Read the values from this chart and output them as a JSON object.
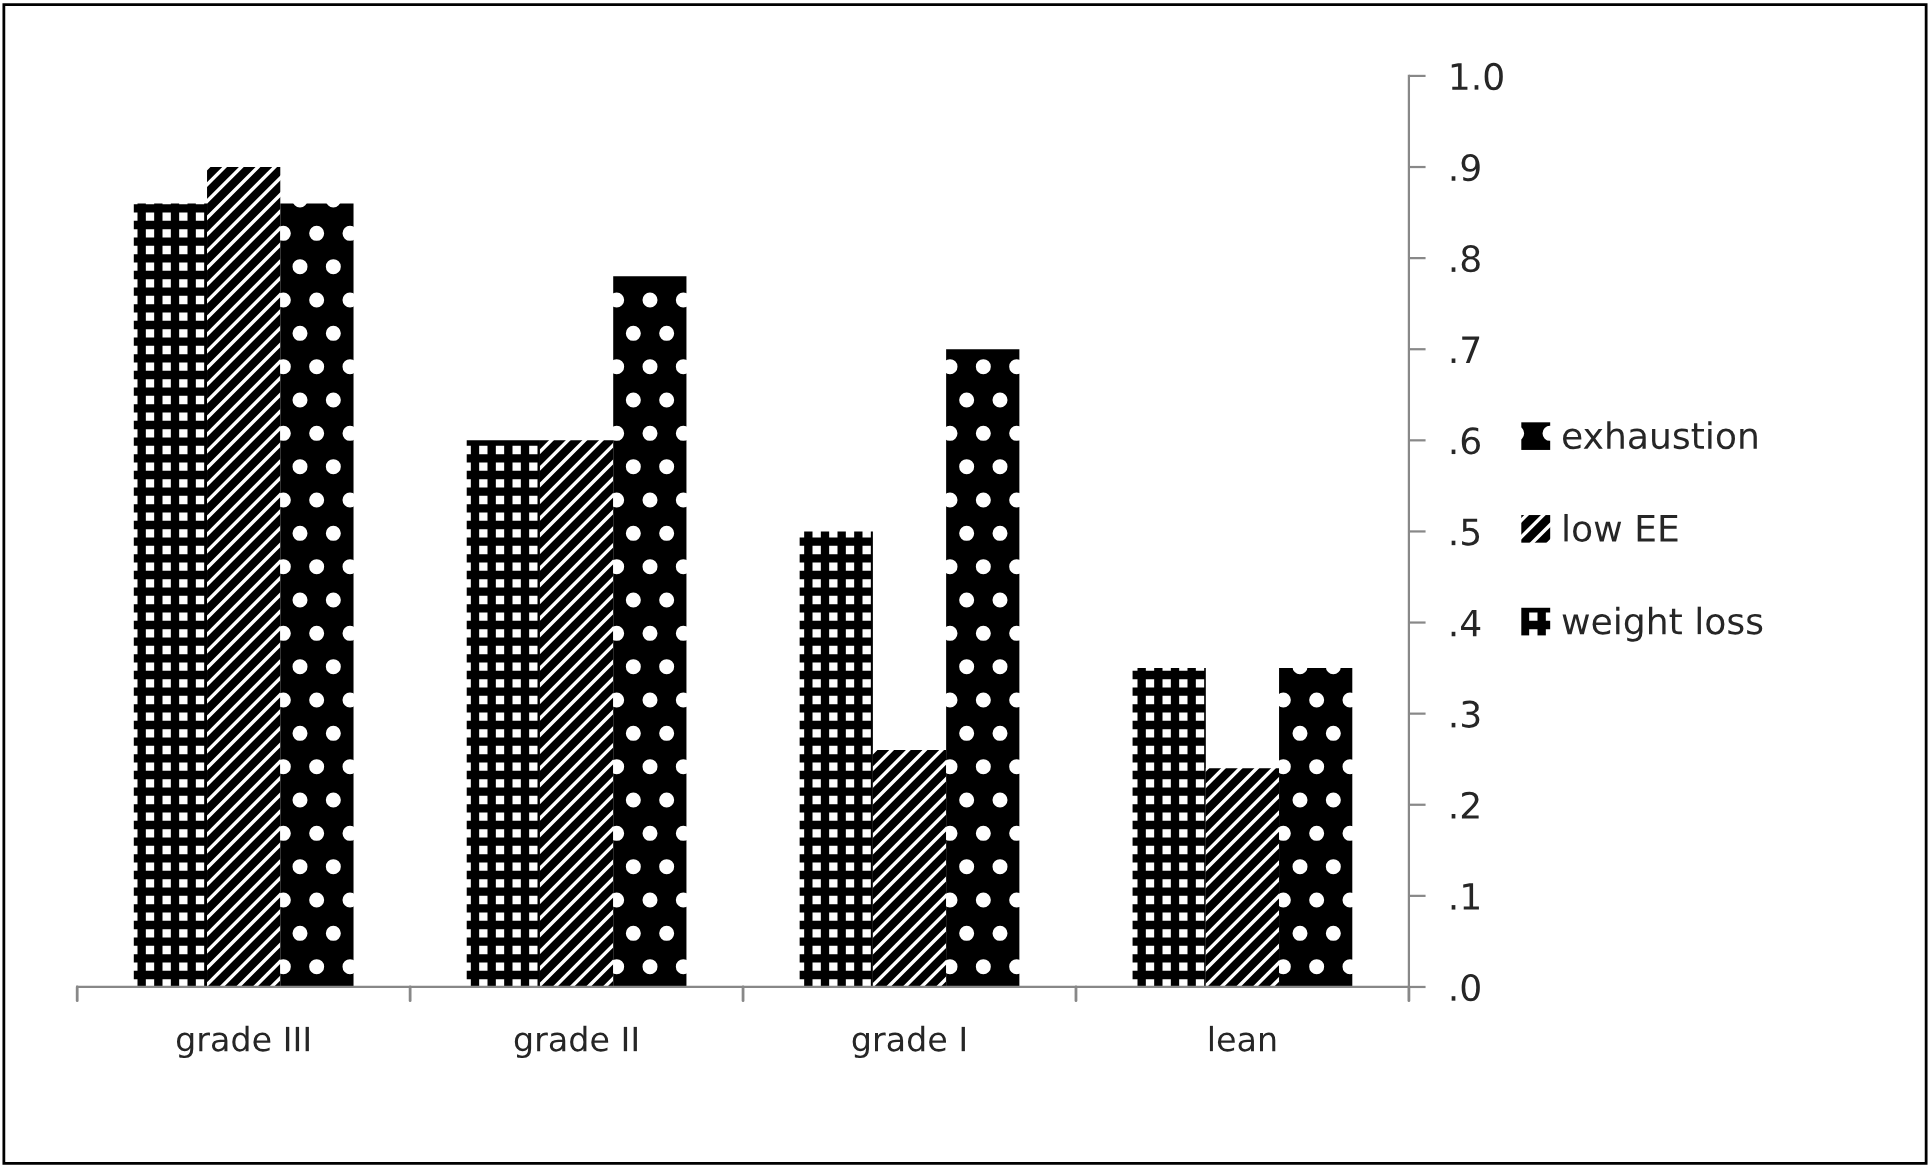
{
  "chart_data": {
    "type": "bar",
    "categories": [
      "grade III",
      "grade II",
      "grade I",
      "lean"
    ],
    "series": [
      {
        "name": "weight loss",
        "color": "#000000",
        "values": [
          0.86,
          0.6,
          0.5,
          0.35
        ]
      },
      {
        "name": "low EE",
        "color": "#000000",
        "values": [
          0.9,
          0.6,
          0.26,
          0.24
        ]
      },
      {
        "name": "exhaustion",
        "color": "#000000",
        "values": [
          0.86,
          0.78,
          0.7,
          0.35
        ]
      }
    ],
    "ylim": [
      0,
      1.0
    ],
    "yticks": [
      {
        "value": 0,
        "label": ".0"
      },
      {
        "value": 0.1,
        "label": ".1"
      },
      {
        "value": 0.2,
        "label": ".2"
      },
      {
        "value": 0.3,
        "label": ".3"
      },
      {
        "value": 0.4,
        "label": ".4"
      },
      {
        "value": 0.5,
        "label": ".5"
      },
      {
        "value": 0.6,
        "label": ".6"
      },
      {
        "value": 0.7,
        "label": ".7"
      },
      {
        "value": 0.8,
        "label": ".8"
      },
      {
        "value": 0.9,
        "label": ".9"
      },
      {
        "value": 1.0,
        "label": "1.0"
      }
    ],
    "grid": false,
    "legend": "right"
  }
}
